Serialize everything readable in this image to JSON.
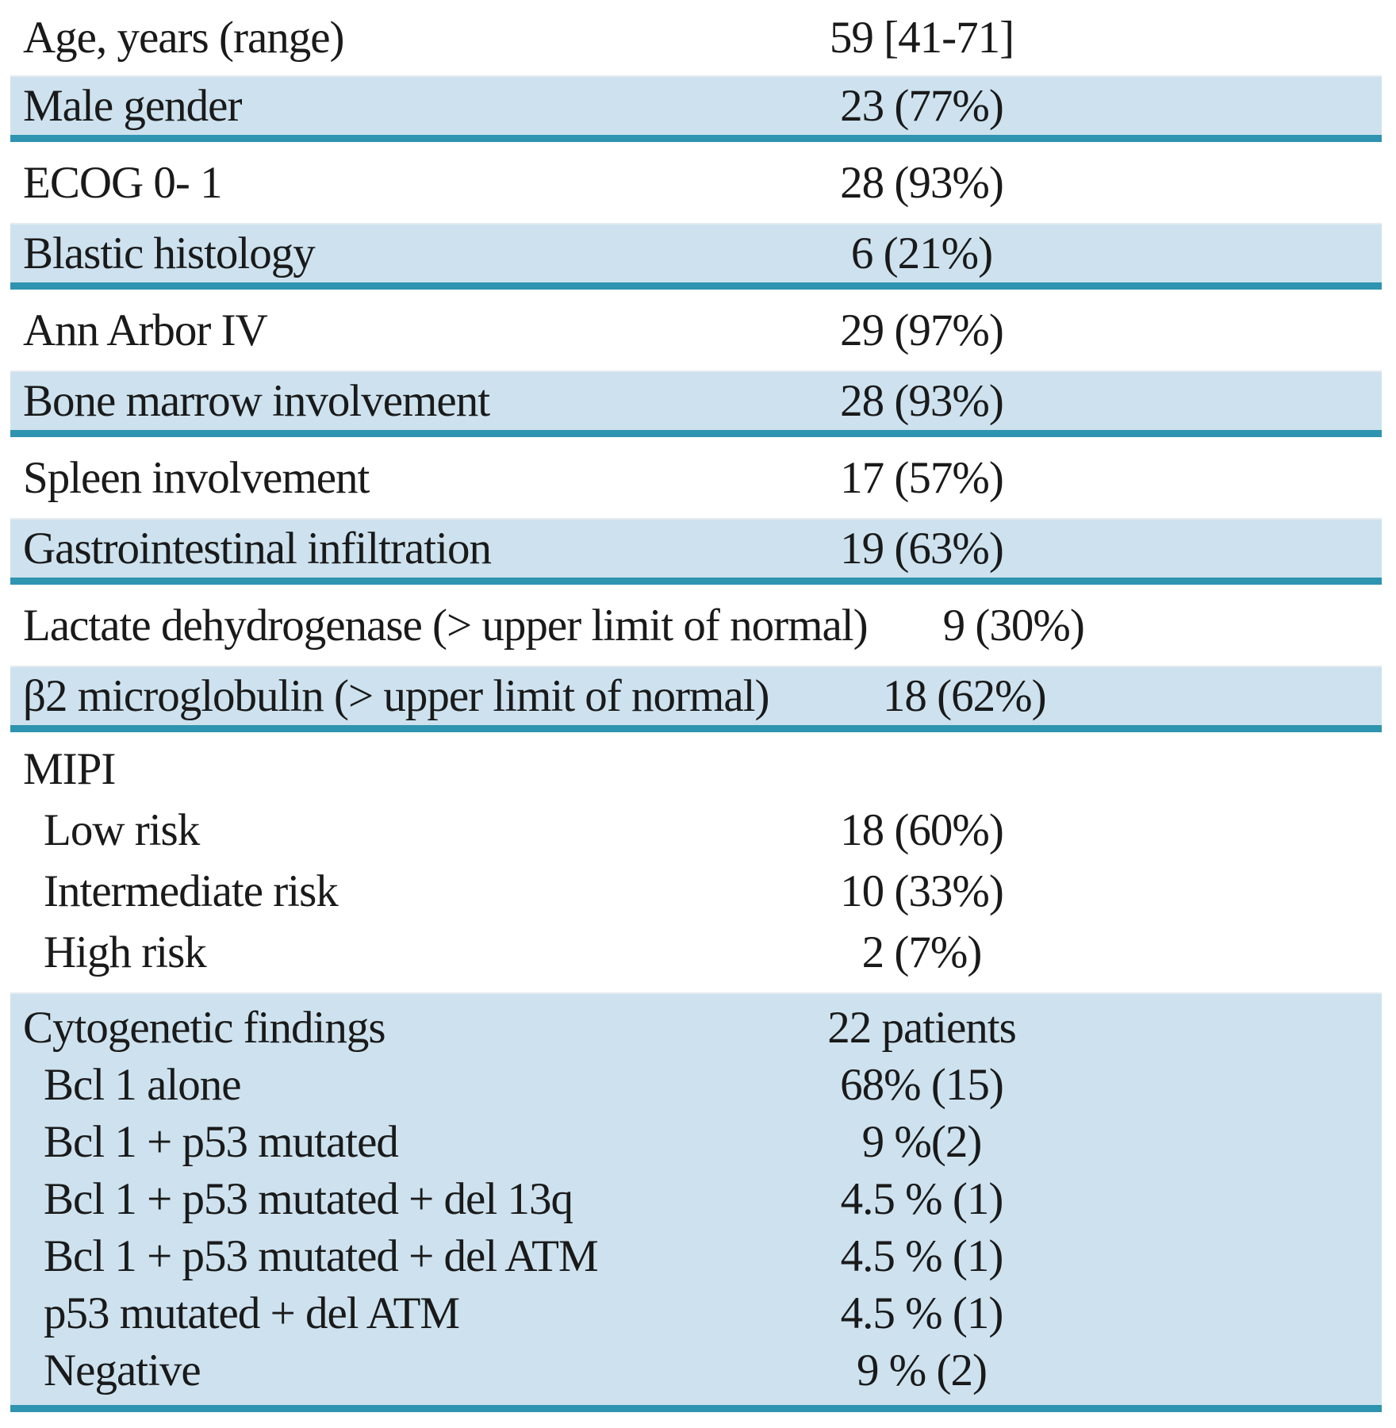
{
  "table": {
    "description": "patient-characteristics-table",
    "colors": {
      "row_highlight": "#cde2ee",
      "divider_teal": "#2e94b0",
      "text": "#1a1a1a"
    },
    "sections": [
      {
        "bg": "white",
        "rows": [
          {
            "label": "Age, years (range)",
            "value": "59 [41-71]"
          }
        ]
      },
      {
        "bg": "blue",
        "rows": [
          {
            "label": "Male gender",
            "value": "23 (77%)"
          }
        ]
      },
      {
        "bg": "white",
        "rows": [
          {
            "label": "ECOG 0- 1",
            "value": "28 (93%)"
          }
        ]
      },
      {
        "bg": "blue",
        "rows": [
          {
            "label": "Blastic histology",
            "value": "6 (21%)"
          }
        ]
      },
      {
        "bg": "white",
        "rows": [
          {
            "label": "Ann Arbor IV",
            "value": "29 (97%)"
          }
        ]
      },
      {
        "bg": "blue",
        "rows": [
          {
            "label": "Bone marrow involvement",
            "value": "28 (93%)"
          }
        ]
      },
      {
        "bg": "white",
        "rows": [
          {
            "label": "Spleen involvement",
            "value": "17 (57%)"
          }
        ]
      },
      {
        "bg": "blue",
        "rows": [
          {
            "label": "Gastrointestinal infiltration",
            "value": "19 (63%)"
          }
        ]
      },
      {
        "bg": "white",
        "rows": [
          {
            "label": "Lactate dehydrogenase (> upper limit of normal)",
            "value": "9 (30%)"
          }
        ]
      },
      {
        "bg": "blue",
        "rows": [
          {
            "label": "β2 microglobulin (> upper limit of normal)",
            "value": "18 (62%)"
          }
        ]
      },
      {
        "bg": "white",
        "group": true,
        "rows": [
          {
            "label": "MIPI",
            "value": ""
          },
          {
            "label": "Low risk",
            "value": "18 (60%)",
            "indent": true
          },
          {
            "label": "Intermediate risk",
            "value": "10 (33%)",
            "indent": true
          },
          {
            "label": "High risk",
            "value": "2 (7%)",
            "indent": true
          }
        ]
      },
      {
        "bg": "blue",
        "group": true,
        "rows": [
          {
            "label": "Cytogenetic findings",
            "value": "22 patients"
          },
          {
            "label": "Bcl 1 alone",
            "value": "68% (15)",
            "indent": true
          },
          {
            "label": "Bcl 1 + p53 mutated",
            "value": "9 %(2)",
            "indent": true
          },
          {
            "label": "Bcl 1 + p53 mutated + del 13q",
            "value": "4.5 % (1)",
            "indent": true
          },
          {
            "label": "Bcl 1 + p53 mutated + del ATM",
            "value": "4.5 % (1)",
            "indent": true
          },
          {
            "label": "p53 mutated + del ATM",
            "value": "4.5 % (1)",
            "indent": true
          },
          {
            "label": "Negative",
            "value": "9 % (2)",
            "indent": true
          }
        ]
      }
    ]
  }
}
